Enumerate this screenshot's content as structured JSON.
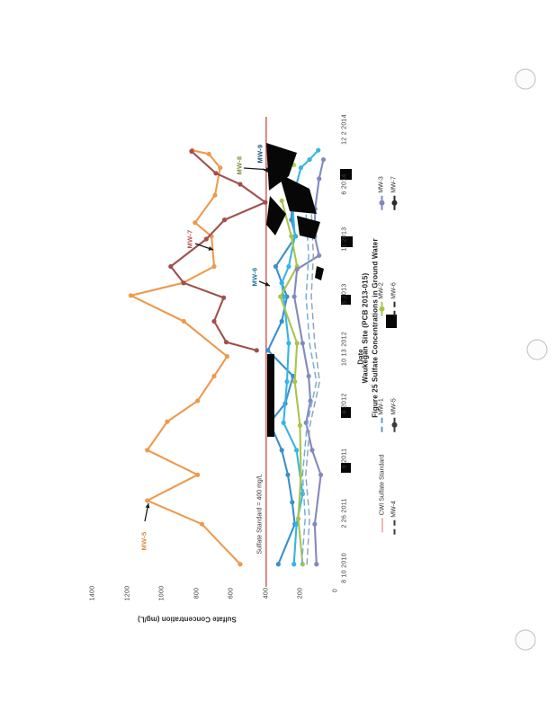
{
  "figure": {
    "title_line1": "Figure 25   Sulfate Concentrations in Ground Water",
    "title_line2": "Waukegan Site (PCB 2013-015)"
  },
  "chart_data": {
    "type": "line",
    "title": "Figure 25 Sulfate Concentrations in Ground Water - Waukegan Site (PCB 2013-015)",
    "xlabel": "Date",
    "ylabel": "Sulfate Concentration (mg/L)",
    "x_tick_labels": [
      "8 10 2010",
      "2 26 2011",
      "9 2011",
      "4 2012",
      "10 13 2012",
      "5 2013",
      "11 2013",
      "6 2014",
      "12 2 2014"
    ],
    "y_tick_labels": [
      "1400",
      "1200",
      "1000",
      "800",
      "600",
      "400",
      "200",
      "0"
    ],
    "ylim": [
      0,
      1400
    ],
    "grid": false,
    "legend_position": "below-plot (rotated with figure)",
    "standard_line": {
      "label": "Sulfate Standard = 400 mg/L",
      "value": 400,
      "color": "#d97070"
    },
    "series": [
      {
        "name": "MW-5",
        "color": "#EE9A4E",
        "dash": false,
        "marker": true,
        "points": [
          [
            0.07,
            550
          ],
          [
            0.8,
            770
          ],
          [
            1.23,
            1085
          ],
          [
            1.7,
            795
          ],
          [
            2.15,
            1085
          ],
          [
            2.67,
            970
          ],
          [
            3.05,
            795
          ],
          [
            3.5,
            700
          ],
          [
            3.86,
            625
          ],
          [
            4.5,
            875
          ],
          [
            4.97,
            1180
          ],
          [
            5.2,
            880
          ],
          [
            5.5,
            700
          ],
          [
            6.05,
            715
          ],
          [
            6.3,
            810
          ],
          [
            6.8,
            695
          ],
          [
            7.3,
            665
          ],
          [
            7.55,
            730
          ],
          [
            7.62,
            825
          ]
        ]
      },
      {
        "name": "MW-7",
        "color": "#A0504B",
        "dash": false,
        "marker": true,
        "points": [
          [
            3.97,
            455
          ],
          [
            4.12,
            630
          ],
          [
            4.5,
            700
          ],
          [
            4.93,
            645
          ],
          [
            5.2,
            875
          ],
          [
            5.5,
            950
          ],
          [
            6.0,
            745
          ],
          [
            6.35,
            640
          ],
          [
            6.67,
            405
          ],
          [
            7.0,
            550
          ],
          [
            7.2,
            690
          ],
          [
            7.6,
            830
          ]
        ]
      },
      {
        "name": "MW-6",
        "color": "#3C8FCC",
        "dash": false,
        "marker": true,
        "points": [
          [
            0.07,
            330
          ],
          [
            0.8,
            235
          ],
          [
            1.2,
            250
          ],
          [
            1.7,
            275
          ],
          [
            2.15,
            310
          ],
          [
            2.65,
            380
          ],
          [
            3.0,
            290
          ],
          [
            3.5,
            245
          ],
          [
            3.97,
            390
          ],
          [
            4.5,
            310
          ],
          [
            4.95,
            280
          ],
          [
            5.2,
            310
          ],
          [
            5.5,
            345
          ],
          [
            6.05,
            230
          ],
          [
            6.35,
            255
          ],
          [
            6.7,
            250
          ]
        ]
      },
      {
        "name": "MW-9",
        "color": "#35B5E5",
        "dash": false,
        "marker": true,
        "points": [
          [
            0.07,
            240
          ],
          [
            0.8,
            225
          ],
          [
            1.35,
            190
          ],
          [
            2.15,
            225
          ],
          [
            2.65,
            300
          ],
          [
            3.4,
            280
          ],
          [
            4.1,
            270
          ],
          [
            4.95,
            300
          ],
          [
            5.2,
            310
          ],
          [
            5.5,
            270
          ],
          [
            6.05,
            235
          ],
          [
            6.7,
            250
          ],
          [
            7.3,
            200
          ],
          [
            7.45,
            150
          ],
          [
            7.62,
            100
          ]
        ]
      },
      {
        "name": "MW-2",
        "color": "#A8C44E",
        "dash": false,
        "marker": true,
        "points": [
          [
            0.07,
            190
          ],
          [
            0.9,
            215
          ],
          [
            1.7,
            200
          ],
          [
            2.6,
            205
          ],
          [
            3.4,
            235
          ],
          [
            4.1,
            222
          ],
          [
            4.95,
            318
          ],
          [
            5.5,
            222
          ],
          [
            6.05,
            255
          ],
          [
            6.7,
            310
          ]
        ]
      },
      {
        "name": "MW-3",
        "color": "#8389BD",
        "dash": false,
        "marker": true,
        "points": [
          [
            0.07,
            110
          ],
          [
            0.8,
            120
          ],
          [
            1.7,
            85
          ],
          [
            2.15,
            135
          ],
          [
            2.65,
            170
          ],
          [
            3.05,
            145
          ],
          [
            3.5,
            155
          ],
          [
            4.1,
            190
          ],
          [
            4.95,
            238
          ],
          [
            5.45,
            222
          ],
          [
            5.7,
            95
          ],
          [
            6.05,
            120
          ],
          [
            6.55,
            118
          ],
          [
            7.1,
            95
          ],
          [
            7.45,
            70
          ]
        ]
      },
      {
        "name": "MW-1",
        "color": "#6FB0DC",
        "dash": true,
        "marker": false,
        "points": [
          [
            0.07,
            195
          ],
          [
            0.9,
            175
          ],
          [
            1.7,
            190
          ],
          [
            2.6,
            165
          ],
          [
            3.4,
            110
          ],
          [
            4.1,
            150
          ],
          [
            4.95,
            170
          ],
          [
            5.7,
            155
          ],
          [
            6.7,
            175
          ]
        ]
      },
      {
        "name": "MW-4",
        "color": "#93A3B8",
        "dash": true,
        "marker": false,
        "points": [
          [
            0.07,
            165
          ],
          [
            0.9,
            150
          ],
          [
            1.7,
            172
          ],
          [
            2.6,
            148
          ],
          [
            3.4,
            92
          ],
          [
            4.1,
            120
          ],
          [
            4.95,
            140
          ],
          [
            5.7,
            128
          ],
          [
            6.7,
            142
          ]
        ]
      },
      {
        "name": "MW-8",
        "color": "#B5D06A",
        "dash": false,
        "marker": true,
        "points": [
          [
            7.35,
            240
          ],
          [
            7.5,
            280
          ],
          [
            7.62,
            310
          ]
        ]
      }
    ],
    "annotations": [
      {
        "label": "MW-5",
        "color": "#E08A3C"
      },
      {
        "label": "MW-7",
        "color": "#C0504D"
      },
      {
        "label": "MW-6",
        "color": "#1F7391"
      },
      {
        "label": "MW-8",
        "color": "#7E8C3A"
      },
      {
        "label": "MW-9",
        "color": "#1F4E79"
      }
    ]
  },
  "legend": {
    "entries": [
      {
        "label": "CWI Sulfate Standard",
        "style": "line",
        "color": "#d97070"
      },
      {
        "label": "MW-1",
        "style": "dash",
        "color": "#5f9bd0"
      },
      {
        "label": "MW-2",
        "style": "line-dot",
        "color": "#A8C44E"
      },
      {
        "label": "MW-3",
        "style": "line-dot",
        "color": "#8389BD"
      },
      {
        "label": "MW-4",
        "style": "dash",
        "color": "#3a3a3a"
      },
      {
        "label": "MW-5",
        "style": "line-dot",
        "color": "#3a3a3a"
      },
      {
        "label": "MW-6",
        "style": "dash",
        "color": "#2a2a2a"
      },
      {
        "label": "MW-7",
        "style": "line-dot",
        "color": "#2a2a2a"
      }
    ]
  }
}
